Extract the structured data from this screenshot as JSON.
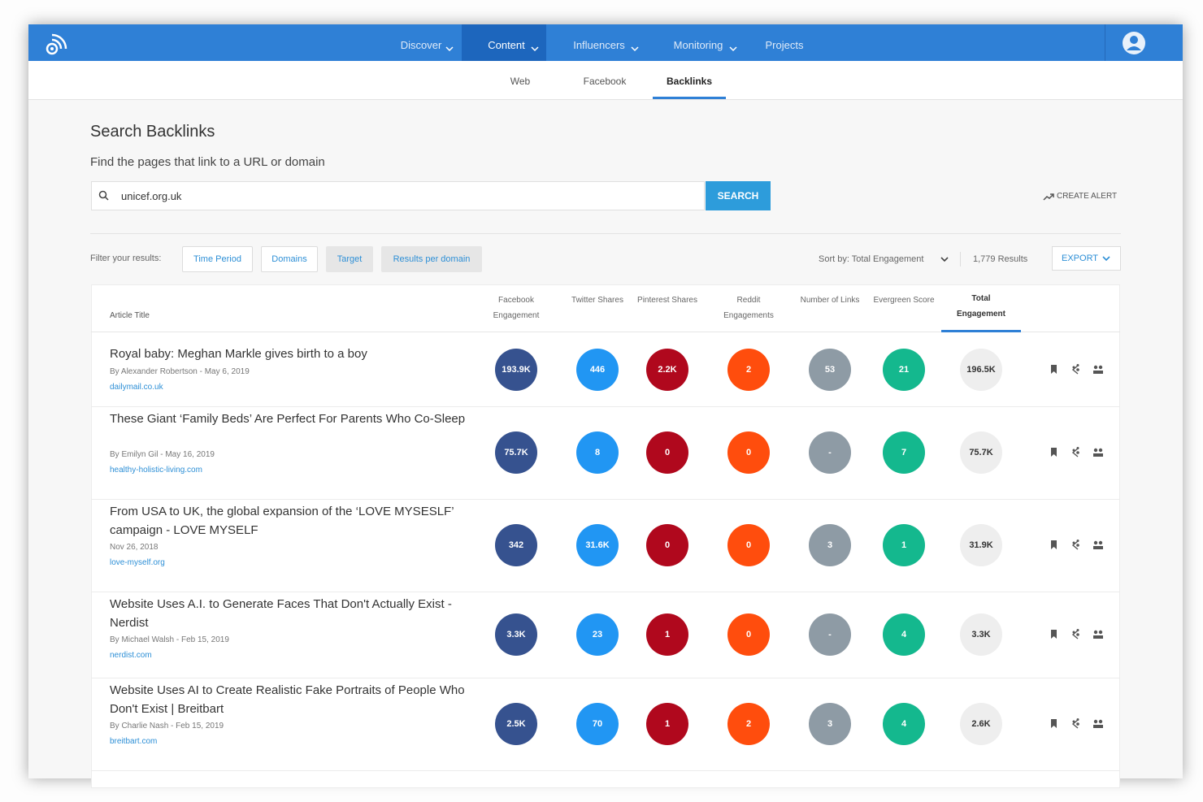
{
  "nav": {
    "items": [
      "Discover",
      "Content",
      "Influencers",
      "Monitoring",
      "Projects"
    ]
  },
  "tabs": [
    "Web",
    "Facebook",
    "Backlinks"
  ],
  "search": {
    "title": "Search Backlinks",
    "subtitle": "Find the pages that link to a URL or domain",
    "query": "unicef.org.uk",
    "button": "SEARCH",
    "create_alert": "CREATE ALERT"
  },
  "filters": {
    "label": "Filter your results:",
    "buttons": [
      "Time Period",
      "Domains",
      "Target",
      "Results per domain"
    ],
    "sort": "Sort by: Total Engagement",
    "results": "1,779 Results",
    "export": "EXPORT"
  },
  "table": {
    "title_header": "Article Title",
    "columns": [
      "Facebook Engagement",
      "Twitter Shares",
      "Pinterest Shares",
      "Reddit Engagements",
      "Number of Links",
      "Evergreen Score",
      "Total Engagement"
    ],
    "rows": [
      {
        "title": "Royal baby: Meghan Markle gives birth to a boy",
        "byline": "By Alexander Robertson - May 6, 2019",
        "domain": "dailymail.co.uk",
        "metrics": [
          "193.9K",
          "446",
          "2.2K",
          "2",
          "53",
          "21",
          "196.5K"
        ]
      },
      {
        "title": "These Giant ‘Family Beds’ Are Perfect For Parents Who Co-Sleep",
        "byline": "By Emilyn Gil - May 16, 2019",
        "domain": "healthy-holistic-living.com",
        "metrics": [
          "75.7K",
          "8",
          "0",
          "0",
          "-",
          "7",
          "75.7K"
        ]
      },
      {
        "title": "From USA to UK, the global expansion of the ‘LOVE MYSESLF’ campaign - LOVE MYSELF",
        "byline": "Nov 26, 2018",
        "domain": "love-myself.org",
        "metrics": [
          "342",
          "31.6K",
          "0",
          "0",
          "3",
          "1",
          "31.9K"
        ]
      },
      {
        "title": "Website Uses A.I. to Generate Faces That Don't Actually Exist - Nerdist",
        "byline": "By Michael Walsh - Feb 15, 2019",
        "domain": "nerdist.com",
        "metrics": [
          "3.3K",
          "23",
          "1",
          "0",
          "-",
          "4",
          "3.3K"
        ]
      },
      {
        "title": "Website Uses AI to Create Realistic Fake Portraits of People Who Don't Exist | Breitbart",
        "byline": "By Charlie Nash - Feb 15, 2019",
        "domain": "breitbart.com",
        "metrics": [
          "2.5K",
          "70",
          "1",
          "2",
          "3",
          "4",
          "2.6K"
        ]
      }
    ]
  }
}
